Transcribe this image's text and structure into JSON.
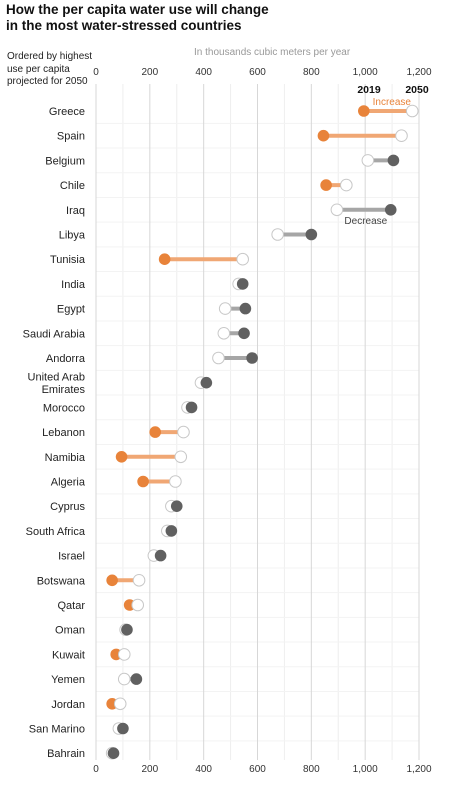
{
  "title_line1": "How the per capita water use will change",
  "title_line2": "in the most water-stressed countries",
  "subtitle_line1": "Ordered by highest",
  "subtitle_line2": "use per capita",
  "subtitle_line3": "projected for 2050",
  "unit_label": "In thousands cubic meters per year",
  "colors": {
    "increase_dot": "#e8833a",
    "increase_bar": "#f0a774",
    "increase_text": "#e8833a",
    "decrease_dot": "#606060",
    "decrease_bar": "#a6a6a6",
    "decrease_text": "#444444",
    "grid_major": "#d7d7d7",
    "grid_minor": "#eeeeee"
  },
  "chart_data": {
    "type": "dumbbell",
    "xlim": [
      0,
      1200
    ],
    "ticks": [
      "0",
      "200",
      "400",
      "600",
      "800",
      "1,000",
      "1,200"
    ],
    "tick_values": [
      0,
      200,
      400,
      600,
      800,
      1000,
      1200
    ],
    "legend": {
      "year_2019": "2019",
      "year_2050": "2050",
      "increase": "Increase",
      "decrease": "Decrease"
    },
    "countries": [
      {
        "name": "Greece",
        "v2019": 995,
        "v2050": 1175
      },
      {
        "name": "Spain",
        "v2019": 845,
        "v2050": 1135
      },
      {
        "name": "Belgium",
        "v2019": 1105,
        "v2050": 1010
      },
      {
        "name": "Chile",
        "v2019": 855,
        "v2050": 930
      },
      {
        "name": "Iraq",
        "v2019": 1095,
        "v2050": 895
      },
      {
        "name": "Libya",
        "v2019": 800,
        "v2050": 675
      },
      {
        "name": "Tunisia",
        "v2019": 255,
        "v2050": 545
      },
      {
        "name": "India",
        "v2019": 545,
        "v2050": 530
      },
      {
        "name": "Egypt",
        "v2019": 555,
        "v2050": 480
      },
      {
        "name": "Saudi Arabia",
        "v2019": 550,
        "v2050": 475
      },
      {
        "name": "Andorra",
        "v2019": 580,
        "v2050": 455
      },
      {
        "name": "United Arab Emirates",
        "label_lines": [
          "United Arab",
          "Emirates"
        ],
        "v2019": 410,
        "v2050": 390
      },
      {
        "name": "Morocco",
        "v2019": 355,
        "v2050": 340
      },
      {
        "name": "Lebanon",
        "v2019": 220,
        "v2050": 325
      },
      {
        "name": "Namibia",
        "v2019": 95,
        "v2050": 315
      },
      {
        "name": "Algeria",
        "v2019": 175,
        "v2050": 295
      },
      {
        "name": "Cyprus",
        "v2019": 300,
        "v2050": 280
      },
      {
        "name": "South Africa",
        "v2019": 280,
        "v2050": 265
      },
      {
        "name": "Israel",
        "v2019": 240,
        "v2050": 215
      },
      {
        "name": "Botswana",
        "v2019": 60,
        "v2050": 160
      },
      {
        "name": "Qatar",
        "v2019": 125,
        "v2050": 155
      },
      {
        "name": "Oman",
        "v2019": 115,
        "v2050": 110
      },
      {
        "name": "Kuwait",
        "v2019": 75,
        "v2050": 105
      },
      {
        "name": "Yemen",
        "v2019": 150,
        "v2050": 105
      },
      {
        "name": "Jordan",
        "v2019": 60,
        "v2050": 90
      },
      {
        "name": "San Marino",
        "v2019": 100,
        "v2050": 85
      },
      {
        "name": "Bahrain",
        "v2019": 65,
        "v2050": 60
      }
    ]
  }
}
